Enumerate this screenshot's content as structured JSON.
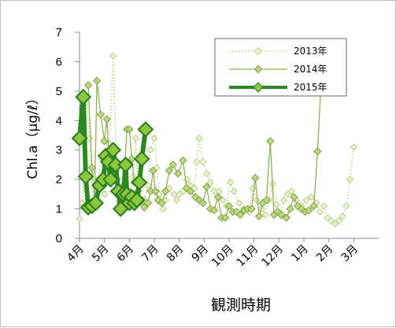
{
  "chart_data": {
    "type": "line",
    "xlabel": "観測時期",
    "ylabel": "Chl.a（μg/ℓ）",
    "ylim": [
      0,
      7
    ],
    "yticks": [
      "0",
      "1",
      "2",
      "3",
      "4",
      "5",
      "6",
      "7"
    ],
    "xticks": [
      "4月",
      "5月",
      "6月",
      "7月",
      "8月",
      "9月",
      "10月",
      "11月",
      "12月",
      "1月",
      "2月",
      "3月"
    ],
    "xlim": [
      0,
      12
    ],
    "grid": false,
    "legend_position": "top-right",
    "series": [
      {
        "name": "2013年",
        "color": "#c9dca0",
        "style": "dotted",
        "points": [
          [
            0.0,
            0.65
          ],
          [
            0.1,
            1.2
          ],
          [
            0.3,
            4.8
          ],
          [
            0.4,
            3.4
          ],
          [
            0.45,
            2.2
          ],
          [
            0.55,
            1.1
          ],
          [
            0.9,
            2.7
          ],
          [
            1.0,
            1.5
          ],
          [
            1.1,
            2.2
          ],
          [
            1.2,
            3.2
          ],
          [
            1.35,
            6.2
          ],
          [
            1.5,
            2.3
          ],
          [
            1.6,
            1.2
          ],
          [
            1.7,
            1.6
          ],
          [
            1.8,
            1.4
          ],
          [
            1.95,
            1.1
          ],
          [
            2.05,
            1.6
          ],
          [
            2.15,
            2.1
          ],
          [
            2.25,
            3.4
          ],
          [
            2.35,
            1.5
          ],
          [
            2.45,
            1.2
          ],
          [
            2.6,
            1.3
          ],
          [
            2.75,
            1.8
          ],
          [
            2.85,
            3.0
          ],
          [
            3.0,
            3.4
          ],
          [
            3.1,
            2.4
          ],
          [
            3.2,
            1.5
          ],
          [
            3.35,
            1.0
          ],
          [
            3.45,
            1.3
          ],
          [
            3.6,
            1.7
          ],
          [
            3.8,
            1.5
          ],
          [
            3.9,
            1.3
          ],
          [
            4.0,
            1.5
          ],
          [
            4.15,
            1.6
          ],
          [
            4.3,
            2.0
          ],
          [
            4.45,
            1.8
          ],
          [
            4.6,
            1.7
          ],
          [
            4.7,
            2.6
          ],
          [
            4.8,
            3.4
          ],
          [
            4.95,
            2.6
          ],
          [
            5.1,
            2.2
          ],
          [
            5.25,
            1.9
          ],
          [
            5.4,
            1.6
          ],
          [
            5.6,
            1.6
          ],
          [
            5.75,
            1.3
          ],
          [
            5.9,
            1.1
          ],
          [
            6.05,
            1.9
          ],
          [
            6.2,
            1.6
          ],
          [
            6.4,
            1.2
          ],
          [
            6.6,
            1.0
          ],
          [
            6.8,
            0.9
          ],
          [
            6.95,
            1.7
          ],
          [
            7.1,
            1.3
          ],
          [
            7.3,
            1.0
          ],
          [
            7.45,
            0.8
          ],
          [
            7.6,
            1.3
          ],
          [
            7.75,
            1.85
          ],
          [
            7.9,
            1.15
          ],
          [
            8.05,
            0.8
          ],
          [
            8.2,
            1.3
          ],
          [
            8.35,
            1.5
          ],
          [
            8.5,
            1.6
          ],
          [
            8.7,
            1.3
          ],
          [
            8.9,
            1.1
          ],
          [
            9.1,
            1.3
          ],
          [
            9.3,
            1.4
          ],
          [
            9.5,
            1.2
          ],
          [
            9.65,
            0.9
          ],
          [
            9.8,
            1.1
          ],
          [
            9.95,
            0.7
          ],
          [
            10.1,
            0.6
          ],
          [
            10.25,
            0.5
          ],
          [
            10.4,
            0.6
          ],
          [
            10.55,
            0.75
          ],
          [
            10.7,
            1.1
          ],
          [
            10.85,
            2.0
          ],
          [
            11.0,
            3.1
          ]
        ]
      },
      {
        "name": "2014年",
        "color": "#8fb056",
        "style": "solid",
        "points": [
          [
            0.35,
            5.2
          ],
          [
            0.5,
            2.4
          ],
          [
            0.6,
            1.3
          ],
          [
            0.7,
            5.35
          ],
          [
            0.85,
            4.2
          ],
          [
            1.0,
            3.3
          ],
          [
            1.1,
            4.05
          ],
          [
            1.2,
            2.6
          ],
          [
            1.35,
            2.3
          ],
          [
            1.5,
            2.0
          ],
          [
            1.6,
            1.75
          ],
          [
            1.75,
            1.5
          ],
          [
            1.9,
            3.7
          ],
          [
            2.0,
            3.7
          ],
          [
            2.1,
            2.7
          ],
          [
            2.2,
            1.9
          ],
          [
            2.35,
            1.6
          ],
          [
            2.5,
            1.3
          ],
          [
            2.6,
            1.05
          ],
          [
            2.75,
            1.2
          ],
          [
            2.85,
            1.6
          ],
          [
            2.95,
            2.3
          ],
          [
            3.05,
            1.6
          ],
          [
            3.15,
            1.3
          ],
          [
            3.3,
            1.2
          ],
          [
            3.45,
            1.6
          ],
          [
            3.6,
            2.3
          ],
          [
            3.75,
            2.5
          ],
          [
            3.95,
            2.2
          ],
          [
            4.15,
            2.65
          ],
          [
            4.3,
            1.7
          ],
          [
            4.45,
            1.6
          ],
          [
            4.65,
            1.4
          ],
          [
            4.8,
            1.3
          ],
          [
            4.95,
            1.2
          ],
          [
            5.1,
            1.75
          ],
          [
            5.25,
            1.0
          ],
          [
            5.4,
            0.95
          ],
          [
            5.55,
            1.4
          ],
          [
            5.7,
            0.7
          ],
          [
            5.85,
            0.7
          ],
          [
            6.0,
            1.1
          ],
          [
            6.15,
            0.9
          ],
          [
            6.3,
            0.9
          ],
          [
            6.45,
            0.8
          ],
          [
            6.6,
            0.95
          ],
          [
            6.75,
            1.0
          ],
          [
            6.9,
            1.0
          ],
          [
            7.05,
            2.05
          ],
          [
            7.2,
            0.75
          ],
          [
            7.35,
            1.2
          ],
          [
            7.5,
            1.3
          ],
          [
            7.65,
            3.3
          ],
          [
            7.8,
            0.8
          ],
          [
            7.95,
            0.9
          ],
          [
            8.1,
            0.8
          ],
          [
            8.3,
            0.7
          ],
          [
            8.45,
            1.0
          ],
          [
            8.6,
            1.4
          ],
          [
            8.75,
            1.1
          ],
          [
            8.9,
            1.0
          ],
          [
            9.05,
            0.9
          ],
          [
            9.2,
            0.95
          ],
          [
            9.4,
            1.1
          ],
          [
            9.55,
            2.95
          ],
          [
            9.7,
            5.5
          ]
        ]
      },
      {
        "name": "2015年",
        "color": "#2a8a1f",
        "style": "bold",
        "points": [
          [
            0.0,
            3.4
          ],
          [
            0.15,
            4.8
          ],
          [
            0.25,
            2.1
          ],
          [
            0.35,
            1.05
          ],
          [
            0.5,
            1.1
          ],
          [
            0.65,
            1.2
          ],
          [
            0.8,
            1.8
          ],
          [
            0.95,
            2.0
          ],
          [
            1.05,
            2.8
          ],
          [
            1.15,
            2.6
          ],
          [
            1.25,
            2.0
          ],
          [
            1.35,
            3.0
          ],
          [
            1.45,
            2.5
          ],
          [
            1.55,
            1.6
          ],
          [
            1.65,
            1.0
          ],
          [
            1.75,
            1.5
          ],
          [
            1.85,
            2.5
          ],
          [
            1.9,
            1.5
          ],
          [
            2.0,
            1.2
          ],
          [
            2.1,
            1.4
          ],
          [
            2.2,
            1.2
          ],
          [
            2.3,
            1.3
          ],
          [
            2.4,
            1.9
          ],
          [
            2.5,
            2.7
          ],
          [
            2.65,
            3.7
          ]
        ]
      }
    ]
  }
}
